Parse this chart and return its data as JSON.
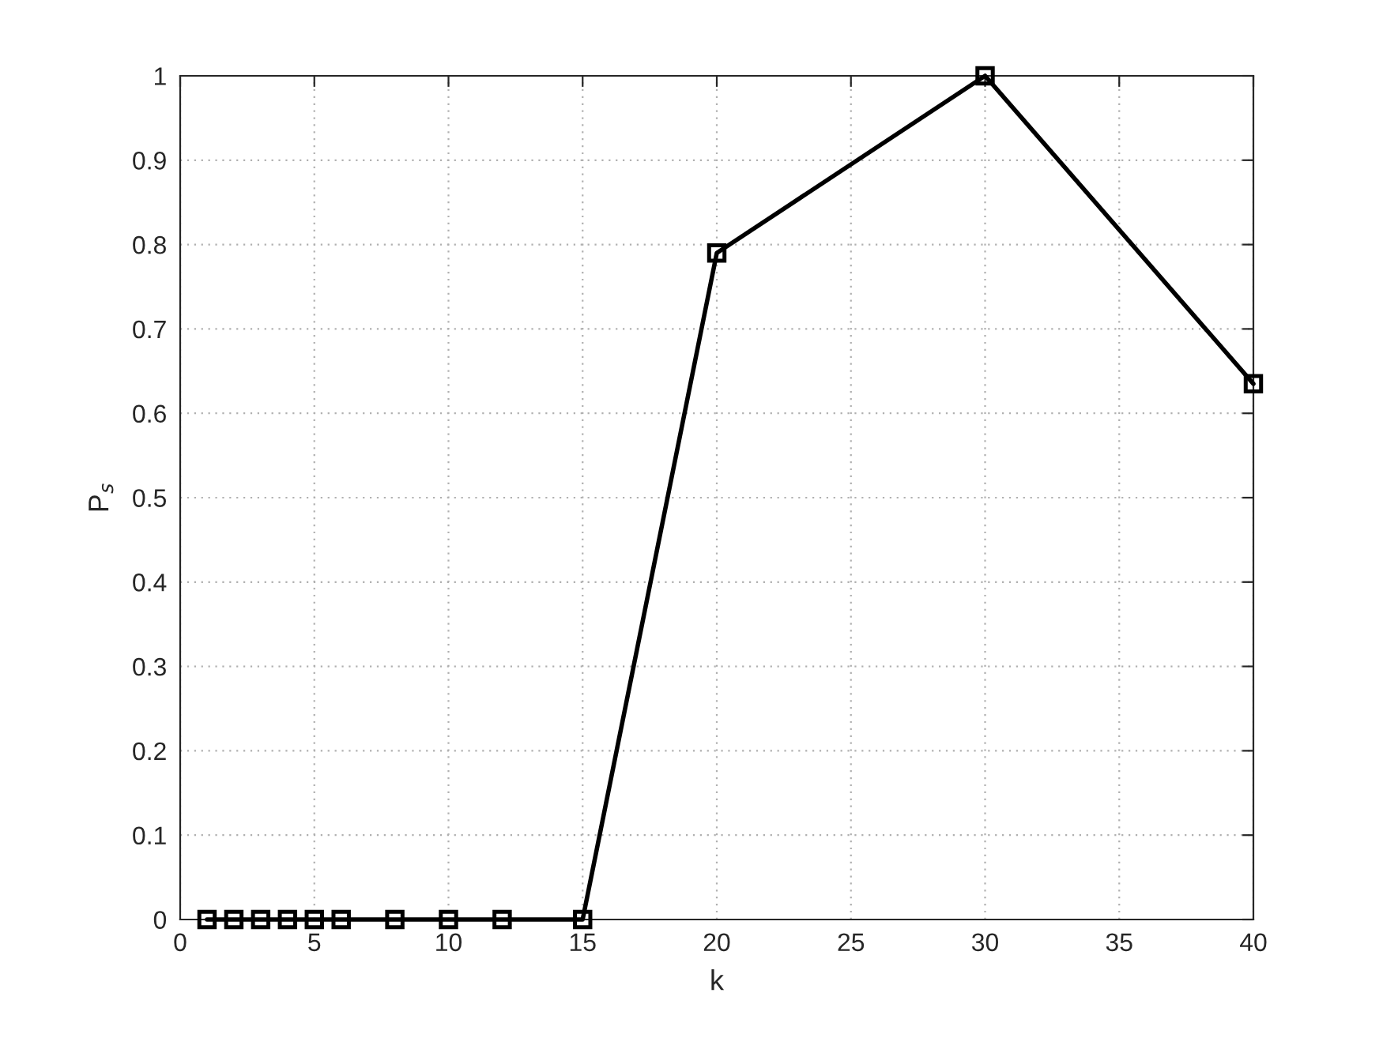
{
  "chart_data": {
    "type": "line",
    "xlabel": "k",
    "ylabel": "P$_{s}$",
    "x": [
      1,
      2,
      3,
      4,
      5,
      6,
      8,
      10,
      12,
      15,
      20,
      30,
      40
    ],
    "series": [
      {
        "color": "#000000",
        "values": [
          0,
          0,
          0,
          0,
          0,
          0,
          0,
          0,
          0,
          0,
          0.79,
          1,
          0.635
        ]
      }
    ],
    "xlim": [
      0,
      40
    ],
    "xticks": [
      0,
      5,
      10,
      15,
      20,
      25,
      30,
      35,
      40
    ],
    "ylim": [
      0,
      1
    ],
    "yticks": [
      0,
      0.1,
      0.2,
      0.3,
      0.4,
      0.5,
      0.6,
      0.7,
      0.8,
      0.9,
      1
    ],
    "grid": true,
    "marker": "square",
    "line_style": "solid"
  }
}
